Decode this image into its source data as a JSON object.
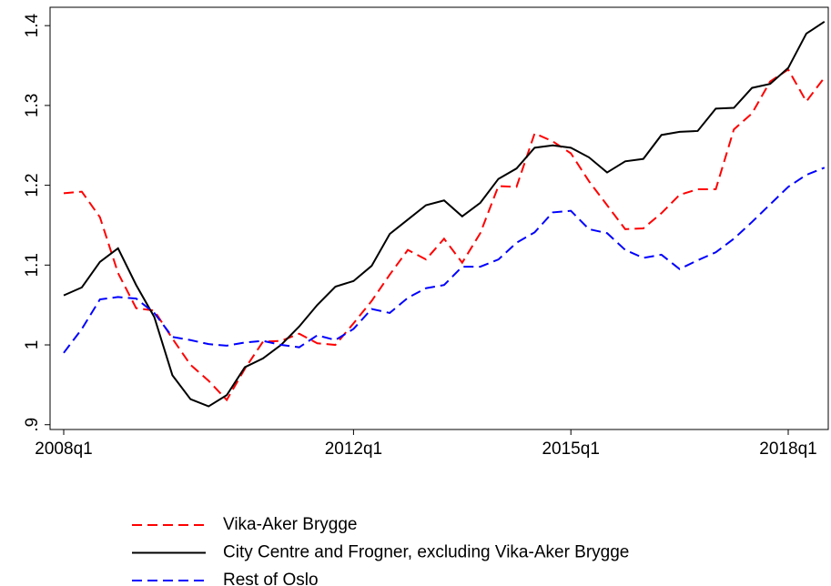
{
  "chart_data": {
    "type": "line",
    "categories": [
      "2008q1",
      null,
      null,
      null,
      null,
      null,
      null,
      null,
      null,
      null,
      null,
      null,
      null,
      null,
      null,
      null,
      "2012q1",
      null,
      null,
      null,
      null,
      null,
      null,
      null,
      null,
      null,
      null,
      null,
      "2015q1",
      null,
      null,
      null,
      null,
      null,
      null,
      null,
      null,
      null,
      null,
      null,
      "2018q1",
      null,
      null
    ],
    "series": [
      {
        "name": "Vika-Aker Brygge",
        "color": "#ff0000",
        "dash": "dashed",
        "values": [
          1.19,
          1.192,
          1.16,
          1.09,
          1.046,
          1.043,
          1.008,
          0.975,
          0.955,
          0.931,
          0.97,
          1.004,
          1.005,
          1.014,
          1.002,
          1.0,
          1.027,
          1.055,
          1.088,
          1.119,
          1.107,
          1.133,
          1.103,
          1.14,
          1.199,
          1.198,
          1.265,
          1.255,
          1.24,
          1.205,
          1.175,
          1.145,
          1.146,
          1.165,
          1.188,
          1.195,
          1.195,
          1.27,
          1.29,
          1.33,
          1.345,
          1.305,
          1.335
        ]
      },
      {
        "name": "City Centre and Frogner, excluding Vika-Aker Brygge",
        "color": "#000000",
        "dash": "solid",
        "values": [
          1.062,
          1.072,
          1.104,
          1.121,
          1.075,
          1.035,
          0.962,
          0.932,
          0.923,
          0.937,
          0.972,
          0.983,
          1.0,
          1.023,
          1.05,
          1.073,
          1.08,
          1.099,
          1.139,
          1.157,
          1.175,
          1.181,
          1.161,
          1.178,
          1.208,
          1.221,
          1.247,
          1.25,
          1.247,
          1.235,
          1.216,
          1.23,
          1.233,
          1.263,
          1.267,
          1.268,
          1.296,
          1.297,
          1.322,
          1.327,
          1.347,
          1.39,
          1.405
        ]
      },
      {
        "name": "Rest of Oslo",
        "color": "#0000ff",
        "dash": "dashed",
        "values": [
          0.99,
          1.02,
          1.057,
          1.06,
          1.058,
          1.04,
          1.01,
          1.006,
          1.001,
          0.999,
          1.003,
          1.005,
          1.0,
          0.997,
          1.012,
          1.006,
          1.02,
          1.045,
          1.04,
          1.059,
          1.071,
          1.075,
          1.098,
          1.098,
          1.107,
          1.128,
          1.141,
          1.166,
          1.168,
          1.145,
          1.14,
          1.119,
          1.109,
          1.113,
          1.095,
          1.106,
          1.116,
          1.133,
          1.154,
          1.176,
          1.198,
          1.213,
          1.222
        ]
      }
    ],
    "ylim": [
      0.894,
      1.423
    ],
    "yticks": [
      {
        "value": 0.9,
        "label": ".9"
      },
      1,
      1.1,
      1.2,
      1.3,
      1.4
    ],
    "grid": false
  }
}
